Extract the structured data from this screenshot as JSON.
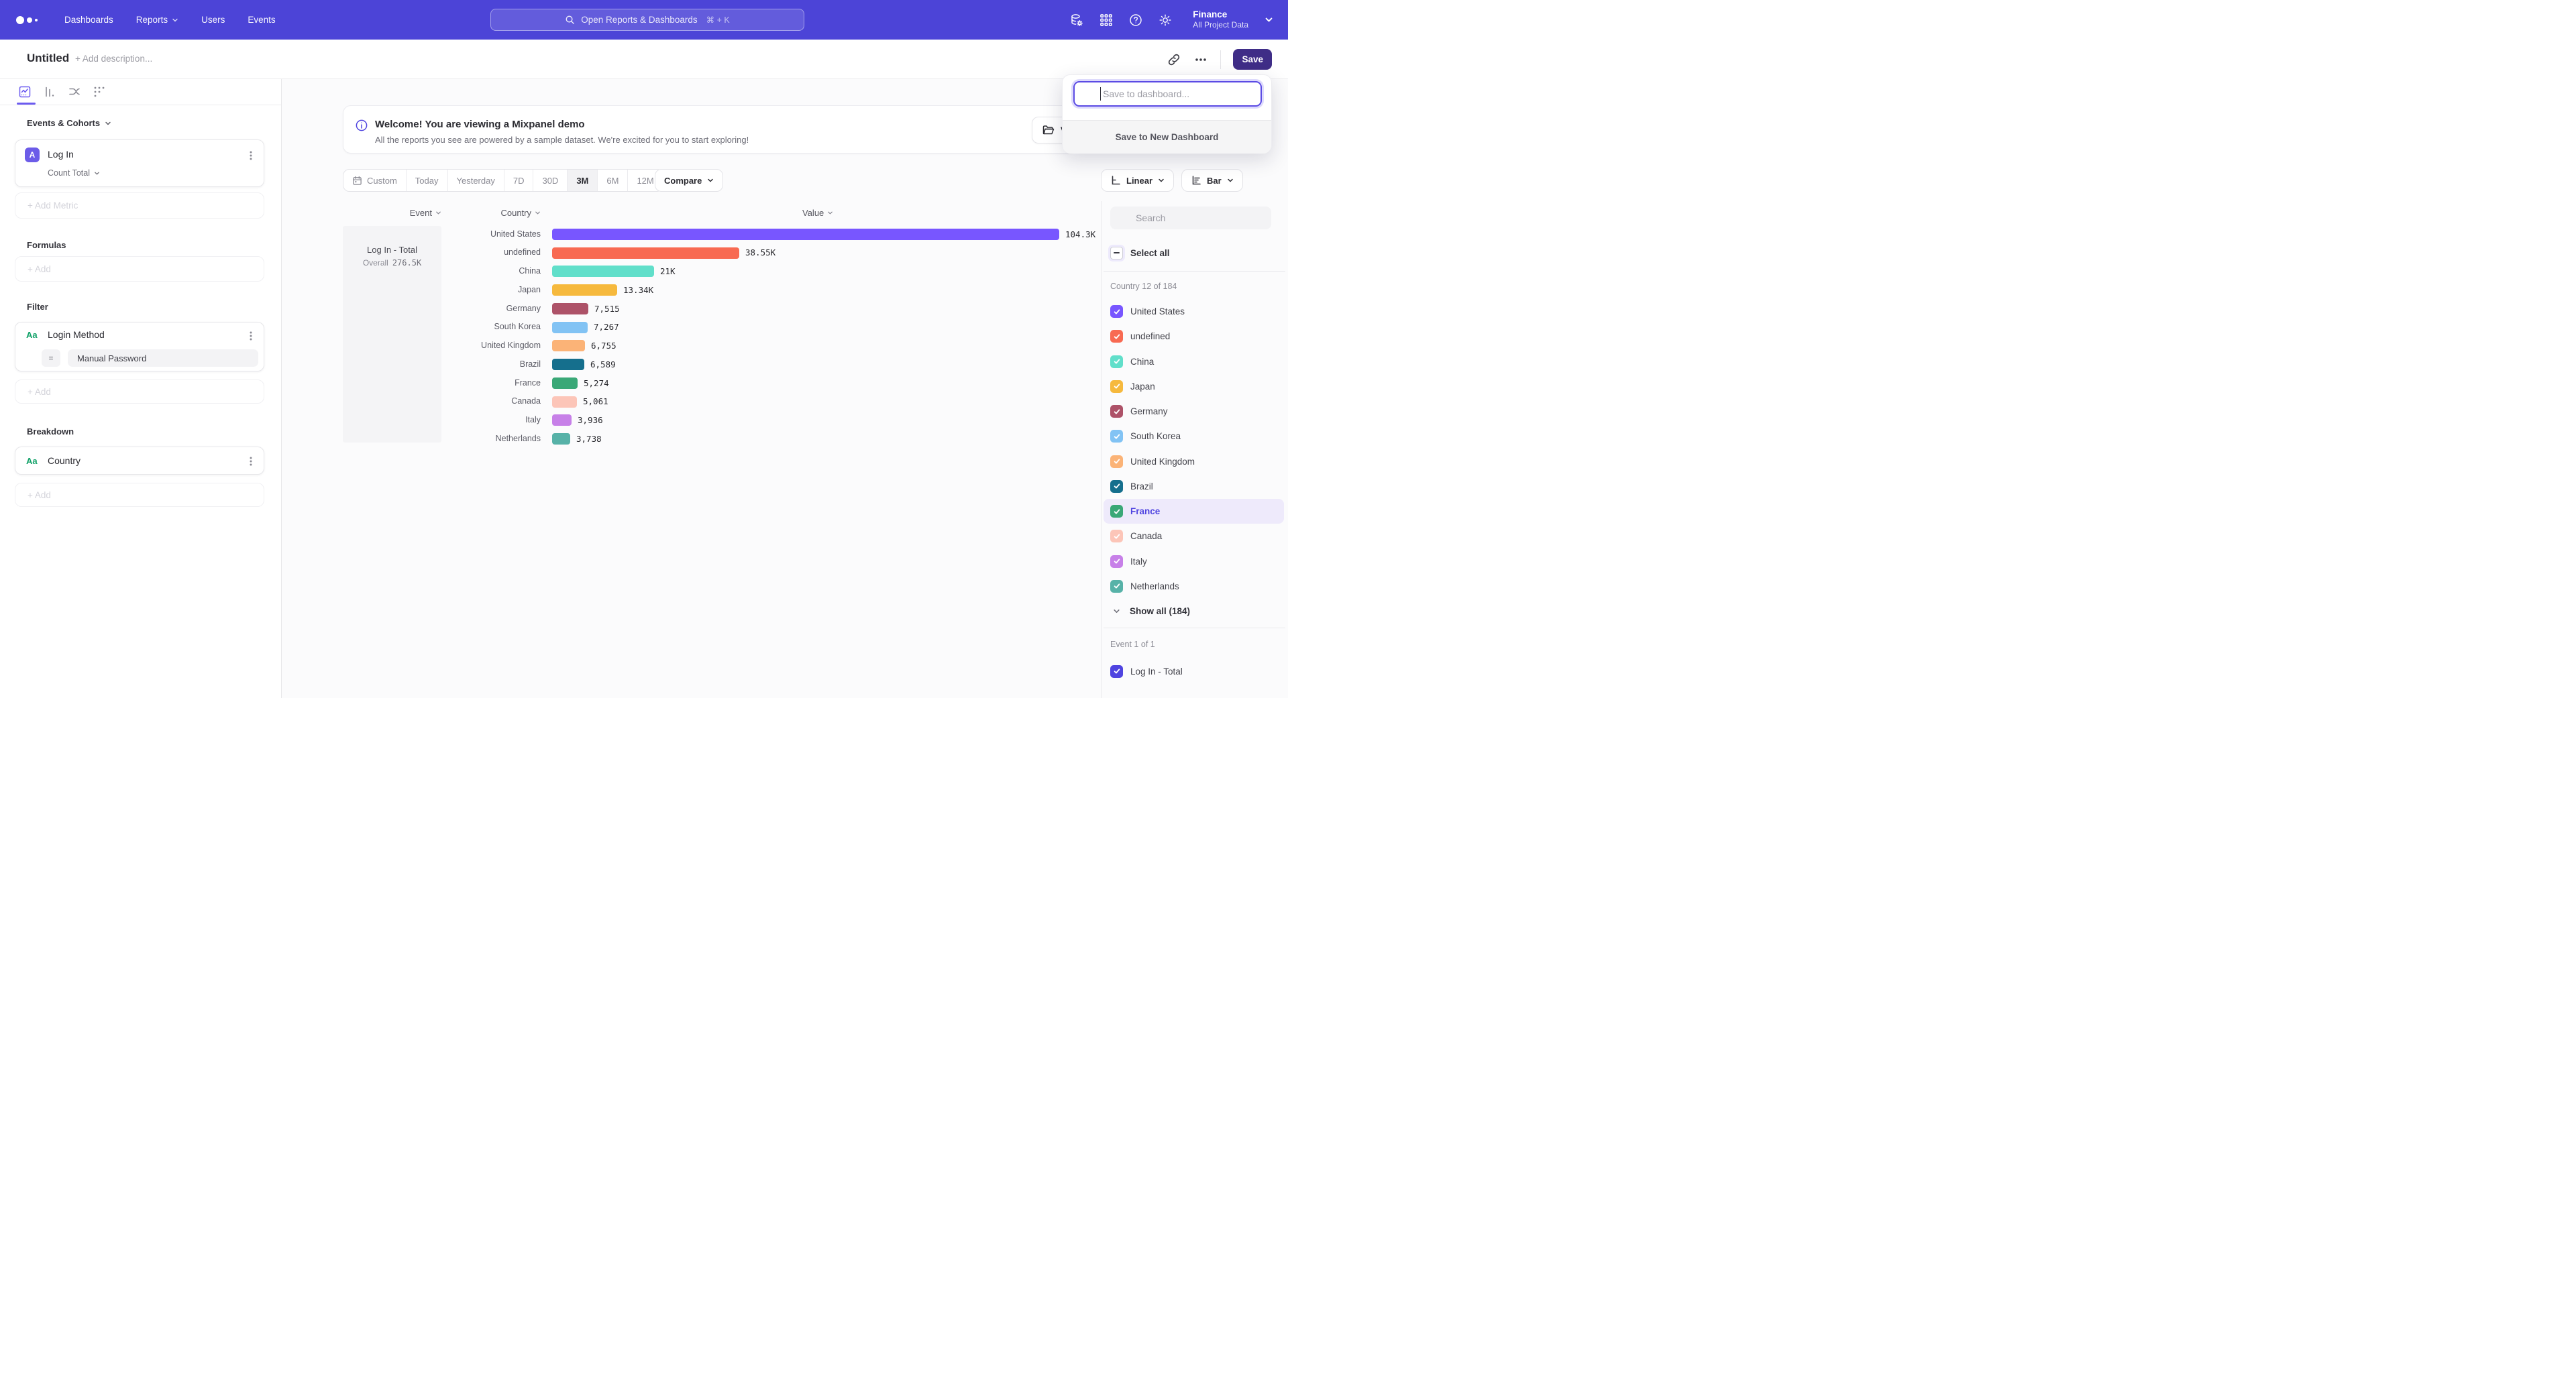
{
  "topnav": {
    "items": [
      "Dashboards",
      "Reports",
      "Users",
      "Events"
    ],
    "search_placeholder": "Open Reports & Dashboards",
    "search_shortcut": "⌘ + K",
    "project_name": "Finance",
    "project_scope": "All Project Data"
  },
  "titlebar": {
    "title": "Untitled",
    "description_placeholder": "+ Add description...",
    "save_label": "Save"
  },
  "save_popup": {
    "placeholder": "Save to dashboard...",
    "action": "Save to New Dashboard"
  },
  "sidebar": {
    "events_section_label": "Events & Cohorts",
    "metric_badge": "A",
    "metric_name": "Log In",
    "metric_aggregation": "Count Total",
    "add_metric_label": "+ Add Metric",
    "formulas_label": "Formulas",
    "formulas_add_label": "+ Add",
    "filter_label": "Filter",
    "filter_property_badge": "Aa",
    "filter_property": "Login Method",
    "filter_operator": "=",
    "filter_value": "Manual Password",
    "filter_add_label": "+ Add",
    "breakdown_label": "Breakdown",
    "breakdown_property_badge": "Aa",
    "breakdown_property": "Country",
    "breakdown_add_label": "+ Add"
  },
  "banner": {
    "title": "Welcome! You are viewing a Mixpanel demo",
    "subtitle": "All the reports you see are powered by a sample dataset. We're excited for you to start exploring!",
    "action_visible_text": "V"
  },
  "toolbar": {
    "ranges": [
      "Custom",
      "Today",
      "Yesterday",
      "7D",
      "30D",
      "3M",
      "6M",
      "12M"
    ],
    "selected_range": "3M",
    "compare_label": "Compare",
    "scale_label": "Linear",
    "chart_type_label": "Bar"
  },
  "chart": {
    "headers": {
      "event": "Event",
      "country": "Country",
      "value": "Value"
    },
    "event_name": "Log In - Total",
    "overall_label": "Overall",
    "overall_value": "276.5K"
  },
  "chart_data": {
    "type": "bar",
    "orientation": "horizontal",
    "title": "Log In - Total by Country",
    "categories": [
      "United States",
      "undefined",
      "China",
      "Japan",
      "Germany",
      "South Korea",
      "United Kingdom",
      "Brazil",
      "France",
      "Canada",
      "Italy",
      "Netherlands"
    ],
    "values": [
      104300,
      38550,
      21000,
      13340,
      7515,
      7267,
      6755,
      6589,
      5274,
      5061,
      3936,
      3738
    ],
    "value_labels": [
      "104.3K",
      "38.55K",
      "21K",
      "13.34K",
      "7,515",
      "7,267",
      "6,755",
      "6,589",
      "5,274",
      "5,061",
      "3,936",
      "3,738"
    ],
    "colors": [
      "#7856ff",
      "#f86a52",
      "#61dfca",
      "#f6b93d",
      "#ad5268",
      "#82c3f4",
      "#fbb377",
      "#156f8d",
      "#3aa877",
      "#fcc5b8",
      "#c780e8",
      "#57b2a8"
    ],
    "xmax": 104300,
    "xlabel": "Value",
    "ylabel": "Country",
    "grid": false,
    "legend_position": "right-panel",
    "event_total_label": "Log In - Total",
    "overall_value": 276500
  },
  "filter_panel": {
    "search_placeholder": "Search",
    "select_all_label": "Select all",
    "country_count_label": "Country 12 of 184",
    "countries": [
      {
        "label": "United States",
        "color": "#7856ff",
        "checked": true,
        "highlighted": false
      },
      {
        "label": "undefined",
        "color": "#f86a52",
        "checked": true,
        "highlighted": false
      },
      {
        "label": "China",
        "color": "#61dfca",
        "checked": true,
        "highlighted": false
      },
      {
        "label": "Japan",
        "color": "#f6b93d",
        "checked": true,
        "highlighted": false
      },
      {
        "label": "Germany",
        "color": "#ad5268",
        "checked": true,
        "highlighted": false
      },
      {
        "label": "South Korea",
        "color": "#82c3f4",
        "checked": true,
        "highlighted": false
      },
      {
        "label": "United Kingdom",
        "color": "#fbb377",
        "checked": true,
        "highlighted": false
      },
      {
        "label": "Brazil",
        "color": "#156f8d",
        "checked": true,
        "highlighted": false
      },
      {
        "label": "France",
        "color": "#3aa877",
        "checked": true,
        "highlighted": true
      },
      {
        "label": "Canada",
        "color": "#fcc5b8",
        "checked": true,
        "highlighted": false
      },
      {
        "label": "Italy",
        "color": "#c780e8",
        "checked": true,
        "highlighted": false
      },
      {
        "label": "Netherlands",
        "color": "#57b2a8",
        "checked": true,
        "highlighted": false
      }
    ],
    "show_all_label": "Show all (184)",
    "event_count_label": "Event 1 of 1",
    "event_item_label": "Log In - Total",
    "event_item_color": "#4f44e0",
    "highlight_text_color": "#4f44e0"
  }
}
